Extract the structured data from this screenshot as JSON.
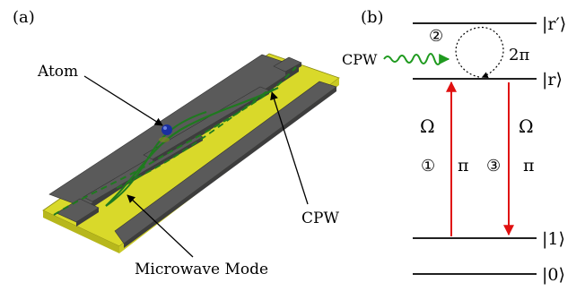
{
  "panel_a": {
    "label": "(a)",
    "labels": {
      "atom": "Atom",
      "cpw": "CPW",
      "microwave_mode": "Microwave Mode"
    }
  },
  "panel_b": {
    "label": "(b)",
    "levels": {
      "r_prime": "|r′⟩",
      "r": "|r⟩",
      "one": "|1⟩",
      "zero": "|0⟩"
    },
    "cpw_label": "CPW",
    "loop_label": "2π",
    "steps": {
      "s1": "①",
      "s2": "②",
      "s3": "③"
    },
    "rabi_left": "Ω",
    "rabi_right": "Ω",
    "pi_left": "π",
    "pi_right": "π"
  },
  "colors": {
    "substrate": "#e2e23a",
    "metal": "#555555",
    "mode": "#1f7a1f",
    "arrow": "#e01010",
    "atom": "#1a2fa0"
  }
}
